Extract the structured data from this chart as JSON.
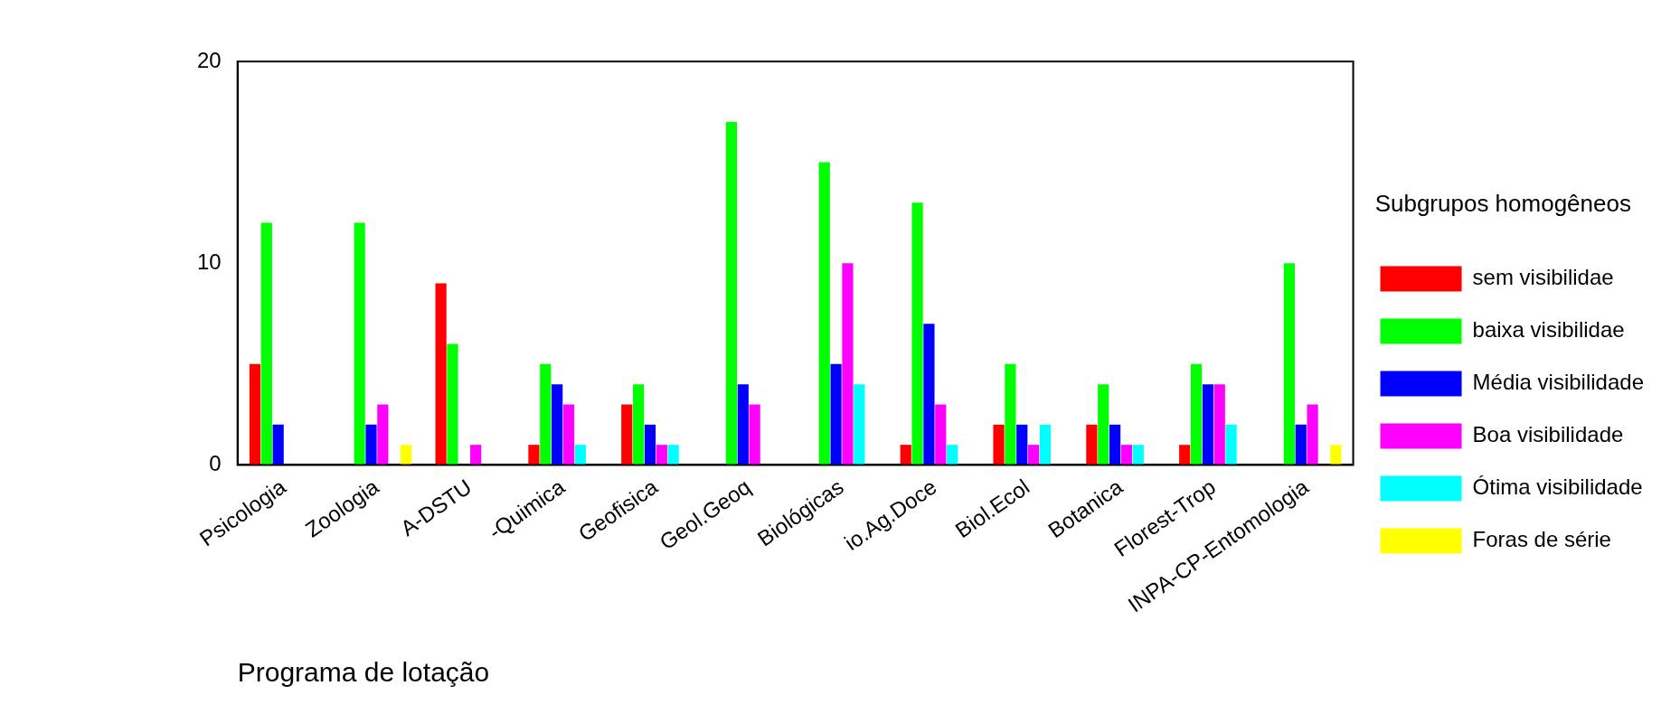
{
  "chart_data": {
    "type": "bar",
    "xlabel": "Programa de lotação",
    "legend_title": "Subgrupos homogêneos",
    "categories": [
      "Psicologia",
      "Zoologia",
      "A-DSTU",
      "-Quimica",
      "Geofisica",
      "Geol.Geoq",
      "Biológicas",
      "io.Ag.Doce",
      "Biol.Ecol",
      "Botanica",
      "Florest-Trop",
      "INPA-CP-Entomologia"
    ],
    "series": [
      {
        "name": "sem visibilidae",
        "color": "#ff0000",
        "values": [
          5,
          0,
          9,
          1,
          3,
          0,
          0,
          1,
          2,
          2,
          1,
          0
        ]
      },
      {
        "name": "baixa visibilidae",
        "color": "#00ff00",
        "values": [
          12,
          12,
          6,
          5,
          4,
          17,
          15,
          13,
          5,
          4,
          5,
          10
        ]
      },
      {
        "name": "Média visibilidade",
        "color": "#0000ff",
        "values": [
          2,
          2,
          0,
          4,
          2,
          4,
          5,
          7,
          2,
          2,
          4,
          2
        ]
      },
      {
        "name": "Boa visibilidade",
        "color": "#ff00ff",
        "values": [
          0,
          3,
          1,
          3,
          1,
          3,
          10,
          3,
          1,
          1,
          4,
          3
        ]
      },
      {
        "name": "Ótima visibilidade",
        "color": "#00ffff",
        "values": [
          0,
          0,
          0,
          1,
          1,
          0,
          4,
          1,
          2,
          1,
          2,
          0
        ]
      },
      {
        "name": "Foras de série",
        "color": "#ffff00",
        "values": [
          0,
          1,
          0,
          0,
          0,
          0,
          0,
          0,
          0,
          0,
          0,
          1
        ]
      }
    ],
    "ylim": [
      0,
      20
    ],
    "yticks": [
      0,
      10,
      20
    ],
    "grid": false,
    "legend": "right"
  }
}
